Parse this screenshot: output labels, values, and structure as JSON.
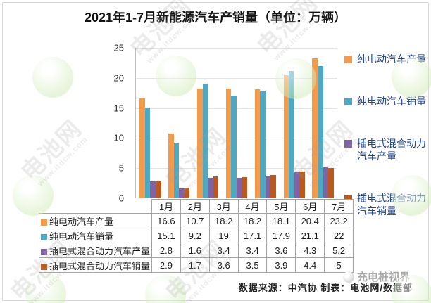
{
  "title": "2021年1-7月新能源汽车产销量（单位：万辆）",
  "chart_data": {
    "type": "bar",
    "title": "2021年1-7月新能源汽车产销量（单位：万辆）",
    "unit": "万辆",
    "categories": [
      "1月",
      "2月",
      "3月",
      "4月",
      "5月",
      "6月",
      "7月"
    ],
    "series": [
      {
        "name": "纯电动汽车产量",
        "color": "#F49A4B",
        "values": [
          16.6,
          10.7,
          18.2,
          18.2,
          18.1,
          20.4,
          23.2
        ]
      },
      {
        "name": "纯电动汽车销量",
        "color": "#4FA8C2",
        "values": [
          15.1,
          9.2,
          19,
          17.1,
          17.9,
          21.1,
          22
        ]
      },
      {
        "name": "插电式混合动力汽车产量",
        "color": "#7F63A5",
        "values": [
          2.8,
          1.6,
          3.4,
          3.4,
          3.6,
          4.3,
          5.2
        ]
      },
      {
        "name": "插电式混合动力汽车销量",
        "color": "#B9591B",
        "values": [
          2.9,
          1.7,
          3.6,
          3.5,
          3.9,
          4.4,
          5
        ]
      }
    ],
    "ylim": [
      0,
      25
    ],
    "yticks": [
      0,
      5,
      10,
      15,
      20,
      25
    ],
    "grid": true,
    "legend_position": "right",
    "legend_text_color": "#1F4598",
    "xlabel": "",
    "ylabel": "",
    "show_data_table": true
  },
  "footer": {
    "source_label": "数据来源：中汽协 制表：电池网/数据部"
  },
  "watermarks": {
    "brand": "充电桩视界",
    "site_name": "电池网",
    "site_url": "www.itdcw.com"
  }
}
